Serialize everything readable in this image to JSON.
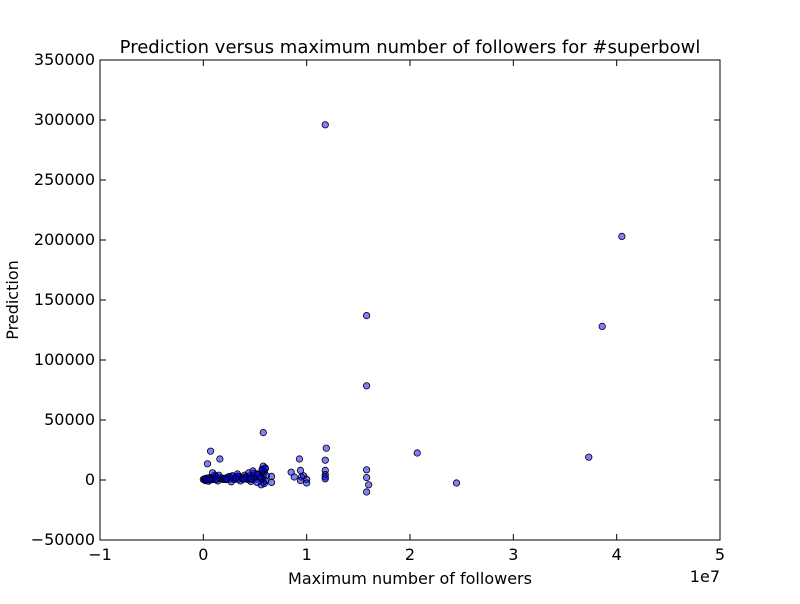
{
  "chart_data": {
    "type": "scatter",
    "title": "Prediction versus maximum number of followers for #superbowl",
    "xlabel": "Maximum number of followers",
    "ylabel": "Prediction",
    "x_offset_label": "1e7",
    "xlim": [
      -1,
      5
    ],
    "ylim": [
      -50000,
      350000
    ],
    "xticks": [
      -1,
      0,
      1,
      2,
      3,
      4,
      5
    ],
    "xtick_labels": [
      "−1",
      "0",
      "1",
      "2",
      "3",
      "4",
      "5"
    ],
    "yticks": [
      -50000,
      0,
      50000,
      100000,
      150000,
      200000,
      250000,
      300000,
      350000
    ],
    "ytick_labels": [
      "−50000",
      "0",
      "50000",
      "100000",
      "150000",
      "200000",
      "250000",
      "300000",
      "350000"
    ],
    "grid": false,
    "legend": "none",
    "marker_color": "#0000ff",
    "marker_alpha": 0.5,
    "x_units_note": "x values in units of 1e7",
    "series": [
      {
        "x": [
          1.18,
          4.05,
          1.58,
          3.86,
          1.58,
          0.58,
          1.19,
          0.07,
          2.07,
          3.73,
          0.16,
          1.18,
          0.04,
          2.45,
          1.58,
          1.6,
          1.58,
          1.58,
          0.58,
          0.6,
          0.57,
          0.59,
          0.56,
          0.58,
          0.61,
          0.55,
          0.57,
          0.6,
          0.58,
          0.59,
          0.56,
          0.66,
          0.66,
          0.85,
          0.88,
          0.93,
          0.94,
          0.97,
          1.0,
          1.0,
          0.95,
          0.94,
          1.18,
          1.18,
          1.18,
          1.18,
          0.0,
          0.01,
          0.02,
          0.03,
          0.04,
          0.05,
          0.06,
          0.08,
          0.09,
          0.1,
          0.12,
          0.13,
          0.15,
          0.17,
          0.19,
          0.2,
          0.22,
          0.24,
          0.26,
          0.28,
          0.29,
          0.3,
          0.32,
          0.34,
          0.35,
          0.37,
          0.38,
          0.4,
          0.42,
          0.44,
          0.45,
          0.47,
          0.49,
          0.5,
          0.51,
          0.53,
          0.54,
          0.02,
          0.05,
          0.08,
          0.1,
          0.11,
          0.14,
          0.18,
          0.21,
          0.25,
          0.27,
          0.31,
          0.33,
          0.36,
          0.39,
          0.41,
          0.43,
          0.46,
          0.48,
          0.52,
          0.09,
          0.15,
          0.28,
          0.33,
          0.44,
          0.48,
          0.52,
          0.57,
          0.6,
          0.12,
          0.23,
          0.31,
          0.39,
          0.46,
          0.07,
          0.22,
          0.06,
          0.03
        ],
        "y": [
          296000,
          203000,
          137000,
          128000,
          78500,
          39500,
          26500,
          24000,
          22500,
          19000,
          17500,
          16500,
          13500,
          -2500,
          8500,
          -4000,
          -10000,
          2000,
          11500,
          9500,
          8000,
          7000,
          6000,
          4500,
          3500,
          2500,
          1000,
          -500,
          -2000,
          -3000,
          -4000,
          3000,
          -2000,
          6500,
          2500,
          17500,
          8000,
          3500,
          500,
          -2500,
          2500,
          -500,
          8000,
          4500,
          2500,
          1000,
          500,
          1000,
          200,
          1500,
          800,
          300,
          2000,
          900,
          400,
          1200,
          3000,
          600,
          2200,
          1000,
          500,
          1500,
          300,
          2500,
          800,
          3500,
          1200,
          400,
          2000,
          600,
          3000,
          1500,
          800,
          4000,
          2500,
          1000,
          3500,
          500,
          5500,
          2000,
          800,
          4500,
          2500,
          -500,
          -1000,
          2000,
          1500,
          4000,
          -800,
          1200,
          600,
          2800,
          -1500,
          1800,
          3200,
          -800,
          1000,
          2600,
          500,
          -1200,
          3500,
          -2000,
          6000,
          4000,
          3500,
          5000,
          6000,
          7500,
          5000,
          9000,
          10000,
          500,
          1000,
          1500,
          700,
          900,
          300,
          600,
          100,
          200
        ]
      }
    ]
  }
}
